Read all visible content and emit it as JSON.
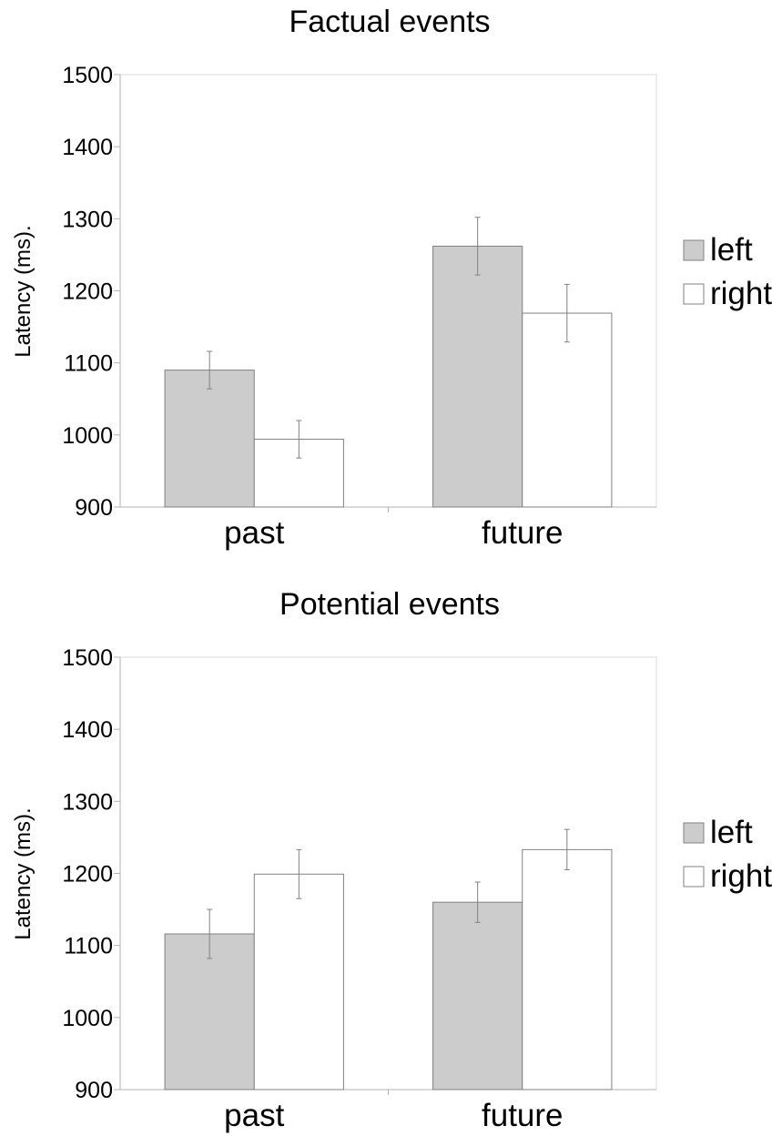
{
  "chart_data": [
    {
      "type": "bar",
      "title": "Factual events",
      "ylabel": "Latency (ms).",
      "xlabel": "",
      "categories": [
        "past",
        "future"
      ],
      "ylim": [
        900,
        1500
      ],
      "yticks": [
        "900",
        "1000",
        "1100",
        "1200",
        "1300",
        "1400",
        "1500"
      ],
      "grid": false,
      "legend": "right",
      "series": [
        {
          "name": "left",
          "color": "#cccccc",
          "values": [
            1090,
            1262
          ],
          "errors": [
            26,
            40
          ]
        },
        {
          "name": "right",
          "color": "#ffffff",
          "values": [
            994,
            1169
          ],
          "errors": [
            26,
            40
          ]
        }
      ]
    },
    {
      "type": "bar",
      "title": "Potential events",
      "ylabel": "Latency (ms).",
      "xlabel": "",
      "categories": [
        "past",
        "future"
      ],
      "ylim": [
        900,
        1500
      ],
      "yticks": [
        "900",
        "1000",
        "1100",
        "1200",
        "1300",
        "1400",
        "1500"
      ],
      "grid": false,
      "legend": "right",
      "series": [
        {
          "name": "left",
          "color": "#cccccc",
          "values": [
            1116,
            1160
          ],
          "errors": [
            34,
            28
          ]
        },
        {
          "name": "right",
          "color": "#ffffff",
          "values": [
            1199,
            1233
          ],
          "errors": [
            34,
            28
          ]
        }
      ]
    }
  ]
}
